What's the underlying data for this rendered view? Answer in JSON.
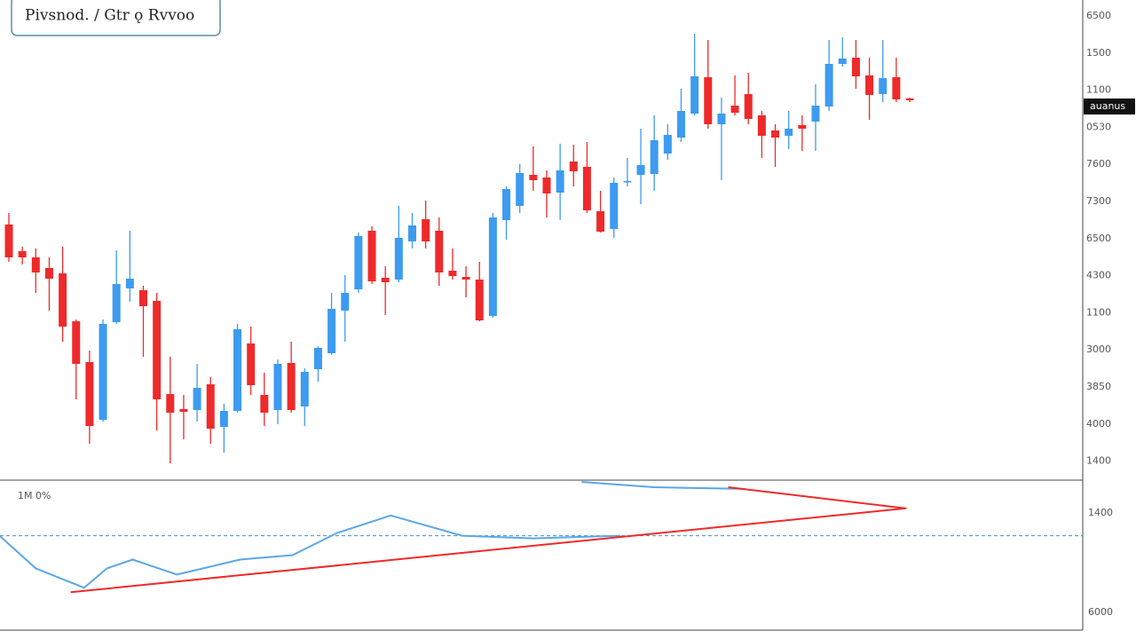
{
  "chart_data": {
    "type": "candlestick",
    "title": "Pivsnod. / Gtr ǫ Rvvoo",
    "indicator_label": "1M 0%",
    "price_tag": "auanus",
    "price_labels": [
      "6500",
      "1500",
      "1100",
      "0530",
      "7600",
      "7300",
      "6500",
      "4300",
      "1100",
      "3000",
      "3850",
      "4000",
      "1400"
    ],
    "indicator_axis_labels": [
      "1400",
      "6000"
    ],
    "up_color": "#3d9bf0",
    "down_color": "#ee2a2a",
    "xlim": [
      -0.66,
      79.87
    ],
    "ylim": [
      0,
      540
    ],
    "open": [
      287,
      257,
      250,
      238,
      232,
      178,
      132,
      67,
      177,
      215,
      213,
      201,
      96,
      79,
      78,
      107,
      59,
      77,
      153,
      95,
      78,
      131,
      82,
      124,
      142,
      190,
      214,
      280,
      227,
      225,
      268,
      293,
      280,
      235,
      228,
      225,
      184,
      292,
      308,
      343,
      340,
      323,
      358,
      352,
      302,
      282,
      335,
      343,
      344,
      367,
      385,
      412,
      453,
      400,
      421,
      434,
      410,
      393,
      387,
      399,
      403,
      420,
      468,
      475,
      455,
      434,
      453,
      429
    ],
    "high": [
      300,
      262,
      260,
      250,
      262,
      180,
      145,
      180,
      258,
      280,
      218,
      210,
      138,
      95,
      130,
      115,
      85,
      175,
      172,
      120,
      135,
      155,
      125,
      150,
      210,
      230,
      278,
      285,
      240,
      308,
      300,
      314,
      295,
      260,
      240,
      245,
      300,
      330,
      355,
      375,
      348,
      378,
      377,
      380,
      325,
      340,
      362,
      395,
      410,
      400,
      440,
      502,
      495,
      430,
      455,
      458,
      415,
      400,
      415,
      410,
      445,
      495,
      498,
      495,
      475,
      495,
      475,
      430
    ],
    "low": [
      245,
      242,
      210,
      190,
      155,
      90,
      40,
      65,
      175,
      200,
      138,
      55,
      18,
      45,
      65,
      40,
      30,
      75,
      95,
      60,
      62,
      75,
      60,
      110,
      140,
      155,
      210,
      220,
      185,
      222,
      260,
      260,
      218,
      225,
      205,
      178,
      182,
      270,
      300,
      325,
      295,
      292,
      330,
      300,
      278,
      272,
      330,
      310,
      325,
      360,
      380,
      410,
      395,
      337,
      410,
      400,
      362,
      352,
      372,
      370,
      370,
      415,
      465,
      440,
      405,
      425,
      425,
      425
    ],
    "close": [
      250,
      250,
      233,
      226,
      172,
      130,
      60,
      175,
      220,
      226,
      195,
      90,
      75,
      76,
      103,
      57,
      77,
      169,
      106,
      75,
      130,
      78,
      121,
      148,
      192,
      210,
      274,
      223,
      222,
      272,
      286,
      268,
      233,
      229,
      225,
      179,
      295,
      327,
      345,
      337,
      322,
      348,
      347,
      303,
      279,
      334,
      336,
      354,
      382,
      388,
      415,
      454,
      400,
      412,
      413,
      406,
      387,
      385,
      395,
      395,
      421,
      468,
      474,
      454,
      433,
      452,
      428,
      427
    ],
    "indicator": {
      "ylim": [
        0,
        170
      ],
      "level": 107,
      "series": [
        {
          "color": "#5aa7e6",
          "x": [
            -0.7,
            2,
            5.6,
            7.3,
            9.2,
            12.5,
            17.2,
            21.1,
            24.4,
            28.4,
            33.7,
            39,
            45.5,
            45.6,
            42.6,
            48,
            54.8
          ],
          "values": [
            107,
            70,
            48,
            70,
            80,
            63,
            80,
            85,
            110,
            130,
            107,
            104,
            107,
            null,
            168,
            162,
            160
          ]
        },
        {
          "color": "#ee2a2a",
          "x": [
            4.6,
            66.7,
            53.5
          ],
          "values": [
            43,
            138,
            162
          ]
        }
      ]
    }
  }
}
